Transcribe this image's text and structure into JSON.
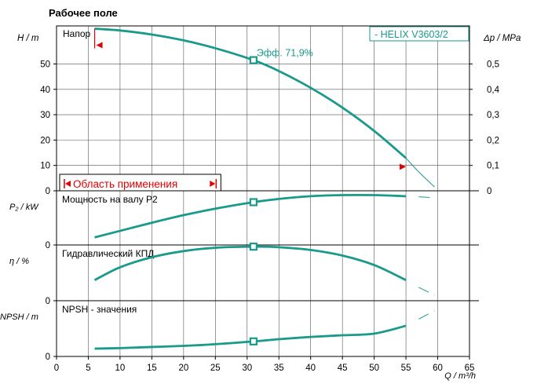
{
  "page_title": "Рабочее поле",
  "chart_data": [
    {
      "type": "line",
      "name": "head",
      "panel_label": "Напор",
      "ylabel": "H / m",
      "y2label": "Δp / MPa",
      "ylim": [
        0,
        65
      ],
      "yticks": [
        0,
        10,
        20,
        30,
        40,
        50
      ],
      "y2lim": [
        0,
        0.65
      ],
      "y2ticks": [
        "0",
        "0,1",
        "0,2",
        "0,3",
        "0,4",
        "0,5"
      ],
      "legend": "-  HELIX V3603/2",
      "efficiency_label": "Эфф.  71,9%",
      "operating_point": {
        "x": 31,
        "y": 51.5
      },
      "application_range_label": "Область применения",
      "application_range": [
        0,
        25
      ],
      "series": [
        {
          "style": "solid",
          "x": [
            6,
            10,
            15,
            20,
            25,
            31,
            35,
            40,
            45,
            50,
            55
          ],
          "y": [
            63.9,
            63.2,
            61.6,
            59.3,
            56.2,
            51.5,
            47.2,
            40.6,
            32.8,
            23.6,
            12.9
          ]
        },
        {
          "style": "thin",
          "x": [
            55,
            57,
            59.5
          ],
          "y": [
            12.9,
            7.5,
            1.5
          ]
        }
      ]
    },
    {
      "type": "line",
      "name": "power",
      "panel_label": "Мощность на валу P2",
      "ylabel": "P₂ / kW",
      "series": [
        {
          "style": "solid",
          "x": [
            6,
            10,
            15,
            20,
            25,
            31,
            35,
            40,
            45,
            50,
            55
          ],
          "y": [
            0.14,
            0.26,
            0.41,
            0.55,
            0.67,
            0.79,
            0.85,
            0.9,
            0.92,
            0.92,
            0.9
          ]
        },
        {
          "style": "dashed",
          "x": [
            57,
            59.5
          ],
          "y": [
            0.89,
            0.87
          ]
        }
      ],
      "operating_point": {
        "x": 31,
        "y": 0.79
      }
    },
    {
      "type": "line",
      "name": "efficiency",
      "panel_label": "Гидравлический КПД",
      "ylabel": "η / %",
      "yticks": [
        0
      ],
      "series": [
        {
          "style": "solid",
          "x": [
            6,
            10,
            15,
            20,
            25,
            31,
            35,
            40,
            45,
            50,
            55
          ],
          "y": [
            0.37,
            0.6,
            0.78,
            0.89,
            0.95,
            0.97,
            0.96,
            0.91,
            0.81,
            0.64,
            0.37
          ]
        },
        {
          "style": "dashed",
          "x": [
            57,
            59.5
          ],
          "y": [
            0.24,
            0.1
          ]
        }
      ],
      "operating_point": {
        "x": 31,
        "y": 0.97
      }
    },
    {
      "type": "line",
      "name": "npsh",
      "panel_label": "NPSH - значения",
      "ylabel": "NPSH / m",
      "yticks": [
        0
      ],
      "xlabel": "Q / m³/h",
      "xlim": [
        0,
        65
      ],
      "xticks": [
        0,
        5,
        10,
        15,
        20,
        25,
        30,
        35,
        40,
        45,
        50,
        55,
        60,
        65
      ],
      "series": [
        {
          "style": "solid",
          "x": [
            6,
            10,
            15,
            20,
            25,
            31,
            35,
            40,
            45,
            50,
            55
          ],
          "y": [
            0.14,
            0.15,
            0.17,
            0.19,
            0.22,
            0.27,
            0.31,
            0.35,
            0.38,
            0.41,
            0.55
          ]
        },
        {
          "style": "dashed",
          "x": [
            57,
            59.5
          ],
          "y": [
            0.67,
            0.82
          ]
        }
      ],
      "operating_point": {
        "x": 31,
        "y": 0.27
      }
    }
  ],
  "colors": {
    "curve": "#1a9a8c",
    "marker": "#e00000",
    "grid": "#555555",
    "axis": "#000000"
  }
}
